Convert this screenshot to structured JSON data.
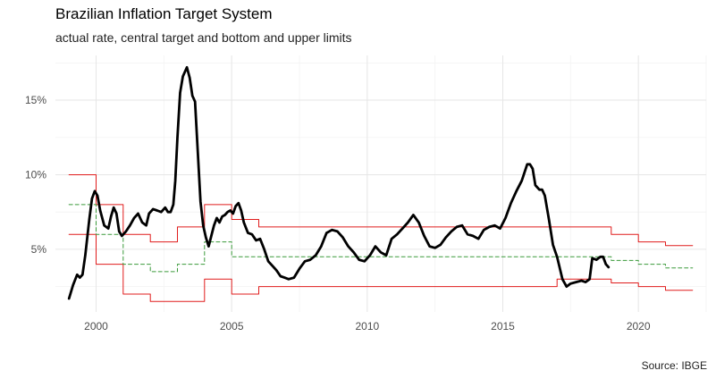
{
  "chart_data": {
    "type": "line",
    "title": "Brazilian Inflation Target System",
    "subtitle": "actual rate, central target and bottom and upper limits",
    "caption": "Source: IBGE",
    "xlabel": "",
    "ylabel": "",
    "xlim": [
      1998.5,
      2022.5
    ],
    "ylim": [
      0.8,
      18.0
    ],
    "x_ticks": [
      2000,
      2005,
      2010,
      2015,
      2020
    ],
    "x_tick_labels": [
      "2000",
      "2005",
      "2010",
      "2015",
      "2020"
    ],
    "y_ticks": [
      5,
      10,
      15
    ],
    "y_tick_labels": [
      "5%",
      "10%",
      "15%"
    ],
    "grid": true,
    "legend": "none",
    "series": [
      {
        "role": "actual",
        "color": "#000000",
        "style": "solid",
        "points": [
          [
            1999.0,
            1.7
          ],
          [
            1999.15,
            2.6
          ],
          [
            1999.3,
            3.3
          ],
          [
            1999.4,
            3.1
          ],
          [
            1999.5,
            3.3
          ],
          [
            1999.6,
            4.6
          ],
          [
            1999.75,
            7.0
          ],
          [
            1999.85,
            8.4
          ],
          [
            1999.95,
            8.9
          ],
          [
            2000.05,
            8.6
          ],
          [
            2000.15,
            7.6
          ],
          [
            2000.3,
            6.6
          ],
          [
            2000.45,
            6.4
          ],
          [
            2000.55,
            7.2
          ],
          [
            2000.65,
            7.8
          ],
          [
            2000.75,
            7.4
          ],
          [
            2000.85,
            6.2
          ],
          [
            2000.95,
            5.9
          ],
          [
            2001.1,
            6.2
          ],
          [
            2001.25,
            6.6
          ],
          [
            2001.4,
            7.1
          ],
          [
            2001.55,
            7.4
          ],
          [
            2001.7,
            6.8
          ],
          [
            2001.85,
            6.6
          ],
          [
            2001.95,
            7.4
          ],
          [
            2002.1,
            7.7
          ],
          [
            2002.25,
            7.6
          ],
          [
            2002.4,
            7.5
          ],
          [
            2002.55,
            7.8
          ],
          [
            2002.65,
            7.5
          ],
          [
            2002.75,
            7.5
          ],
          [
            2002.85,
            8.0
          ],
          [
            2002.92,
            9.6
          ],
          [
            2003.0,
            12.5
          ],
          [
            2003.1,
            15.5
          ],
          [
            2003.2,
            16.6
          ],
          [
            2003.3,
            17.0
          ],
          [
            2003.35,
            17.2
          ],
          [
            2003.45,
            16.5
          ],
          [
            2003.55,
            15.3
          ],
          [
            2003.65,
            14.9
          ],
          [
            2003.75,
            11.5
          ],
          [
            2003.85,
            8.2
          ],
          [
            2003.95,
            6.6
          ],
          [
            2004.05,
            5.8
          ],
          [
            2004.15,
            5.2
          ],
          [
            2004.25,
            5.9
          ],
          [
            2004.35,
            6.6
          ],
          [
            2004.45,
            7.1
          ],
          [
            2004.55,
            6.8
          ],
          [
            2004.65,
            7.2
          ],
          [
            2004.75,
            7.3
          ],
          [
            2004.85,
            7.5
          ],
          [
            2004.95,
            7.6
          ],
          [
            2005.05,
            7.4
          ],
          [
            2005.15,
            7.9
          ],
          [
            2005.25,
            8.1
          ],
          [
            2005.35,
            7.6
          ],
          [
            2005.45,
            6.8
          ],
          [
            2005.6,
            6.1
          ],
          [
            2005.75,
            6.0
          ],
          [
            2005.9,
            5.6
          ],
          [
            2006.05,
            5.7
          ],
          [
            2006.2,
            5.0
          ],
          [
            2006.35,
            4.2
          ],
          [
            2006.5,
            3.9
          ],
          [
            2006.65,
            3.6
          ],
          [
            2006.8,
            3.2
          ],
          [
            2006.95,
            3.1
          ],
          [
            2007.1,
            3.0
          ],
          [
            2007.3,
            3.1
          ],
          [
            2007.5,
            3.7
          ],
          [
            2007.7,
            4.2
          ],
          [
            2007.9,
            4.3
          ],
          [
            2008.1,
            4.6
          ],
          [
            2008.3,
            5.2
          ],
          [
            2008.5,
            6.1
          ],
          [
            2008.7,
            6.3
          ],
          [
            2008.9,
            6.2
          ],
          [
            2009.1,
            5.8
          ],
          [
            2009.3,
            5.2
          ],
          [
            2009.5,
            4.8
          ],
          [
            2009.7,
            4.3
          ],
          [
            2009.9,
            4.2
          ],
          [
            2010.1,
            4.6
          ],
          [
            2010.3,
            5.2
          ],
          [
            2010.5,
            4.8
          ],
          [
            2010.7,
            4.6
          ],
          [
            2010.9,
            5.7
          ],
          [
            2011.1,
            6.0
          ],
          [
            2011.3,
            6.4
          ],
          [
            2011.5,
            6.8
          ],
          [
            2011.7,
            7.3
          ],
          [
            2011.9,
            6.8
          ],
          [
            2012.1,
            5.9
          ],
          [
            2012.3,
            5.2
          ],
          [
            2012.5,
            5.1
          ],
          [
            2012.7,
            5.3
          ],
          [
            2012.9,
            5.8
          ],
          [
            2013.1,
            6.2
          ],
          [
            2013.3,
            6.5
          ],
          [
            2013.5,
            6.6
          ],
          [
            2013.7,
            6.0
          ],
          [
            2013.9,
            5.9
          ],
          [
            2014.1,
            5.7
          ],
          [
            2014.3,
            6.3
          ],
          [
            2014.5,
            6.5
          ],
          [
            2014.7,
            6.6
          ],
          [
            2014.9,
            6.4
          ],
          [
            2015.1,
            7.1
          ],
          [
            2015.3,
            8.1
          ],
          [
            2015.5,
            8.9
          ],
          [
            2015.7,
            9.6
          ],
          [
            2015.9,
            10.7
          ],
          [
            2016.0,
            10.7
          ],
          [
            2016.1,
            10.4
          ],
          [
            2016.2,
            9.3
          ],
          [
            2016.35,
            9.0
          ],
          [
            2016.45,
            9.0
          ],
          [
            2016.55,
            8.6
          ],
          [
            2016.7,
            7.0
          ],
          [
            2016.85,
            5.3
          ],
          [
            2017.0,
            4.5
          ],
          [
            2017.2,
            3.0
          ],
          [
            2017.35,
            2.5
          ],
          [
            2017.5,
            2.7
          ],
          [
            2017.7,
            2.8
          ],
          [
            2017.9,
            2.9
          ],
          [
            2018.05,
            2.8
          ],
          [
            2018.2,
            3.0
          ],
          [
            2018.3,
            4.4
          ],
          [
            2018.45,
            4.3
          ],
          [
            2018.6,
            4.5
          ],
          [
            2018.7,
            4.5
          ],
          [
            2018.8,
            4.0
          ],
          [
            2018.9,
            3.8
          ]
        ]
      },
      {
        "role": "central target",
        "color": "#3a9a3a",
        "style": "dashed",
        "points": [
          [
            1999.0,
            8.0
          ],
          [
            2000.0,
            8.0
          ],
          [
            2000.0,
            6.0
          ],
          [
            2001.0,
            6.0
          ],
          [
            2001.0,
            4.0
          ],
          [
            2002.0,
            4.0
          ],
          [
            2002.0,
            3.5
          ],
          [
            2003.0,
            3.5
          ],
          [
            2003.0,
            4.0
          ],
          [
            2004.0,
            4.0
          ],
          [
            2004.0,
            5.5
          ],
          [
            2005.0,
            5.5
          ],
          [
            2005.0,
            4.5
          ],
          [
            2019.0,
            4.5
          ],
          [
            2019.0,
            4.25
          ],
          [
            2020.0,
            4.25
          ],
          [
            2020.0,
            4.0
          ],
          [
            2021.0,
            4.0
          ],
          [
            2021.0,
            3.75
          ],
          [
            2022.0,
            3.75
          ]
        ]
      },
      {
        "role": "upper limit",
        "color": "#e01c1c",
        "style": "solid",
        "points": [
          [
            1999.0,
            10.0
          ],
          [
            2000.0,
            10.0
          ],
          [
            2000.0,
            8.0
          ],
          [
            2001.0,
            8.0
          ],
          [
            2001.0,
            6.0
          ],
          [
            2002.0,
            6.0
          ],
          [
            2002.0,
            5.5
          ],
          [
            2003.0,
            5.5
          ],
          [
            2003.0,
            6.5
          ],
          [
            2004.0,
            6.5
          ],
          [
            2004.0,
            8.0
          ],
          [
            2005.0,
            8.0
          ],
          [
            2005.0,
            7.0
          ],
          [
            2006.0,
            7.0
          ],
          [
            2006.0,
            6.5
          ],
          [
            2019.0,
            6.5
          ],
          [
            2019.0,
            6.0
          ],
          [
            2020.0,
            6.0
          ],
          [
            2020.0,
            5.5
          ],
          [
            2021.0,
            5.5
          ],
          [
            2021.0,
            5.25
          ],
          [
            2022.0,
            5.25
          ]
        ]
      },
      {
        "role": "bottom limit",
        "color": "#e01c1c",
        "style": "solid",
        "points": [
          [
            1999.0,
            6.0
          ],
          [
            2000.0,
            6.0
          ],
          [
            2000.0,
            4.0
          ],
          [
            2001.0,
            4.0
          ],
          [
            2001.0,
            2.0
          ],
          [
            2002.0,
            2.0
          ],
          [
            2002.0,
            1.5
          ],
          [
            2003.0,
            1.5
          ],
          [
            2003.0,
            1.5
          ],
          [
            2004.0,
            1.5
          ],
          [
            2004.0,
            3.0
          ],
          [
            2005.0,
            3.0
          ],
          [
            2005.0,
            2.0
          ],
          [
            2006.0,
            2.0
          ],
          [
            2006.0,
            2.5
          ],
          [
            2017.0,
            2.5
          ],
          [
            2017.0,
            3.0
          ],
          [
            2019.0,
            3.0
          ],
          [
            2019.0,
            2.75
          ],
          [
            2020.0,
            2.75
          ],
          [
            2020.0,
            2.5
          ],
          [
            2021.0,
            2.5
          ],
          [
            2021.0,
            2.25
          ],
          [
            2022.0,
            2.25
          ]
        ]
      }
    ]
  }
}
